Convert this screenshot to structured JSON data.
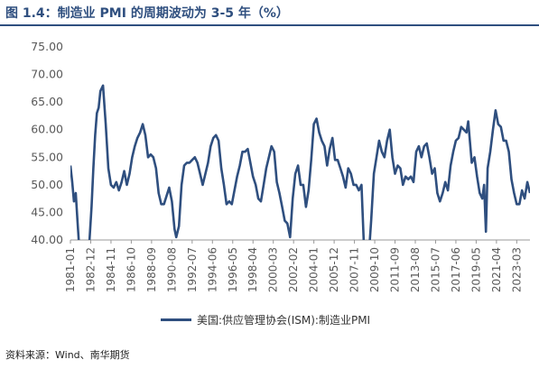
{
  "header": {
    "title": "图 1.4：制造业 PMI 的周期波动为 3-5 年（%）"
  },
  "footer": {
    "source": "资料来源：Wind、南华期货"
  },
  "colors": {
    "line": "#2f4f7f",
    "axis": "#999999",
    "text": "#595959"
  },
  "chart_data": {
    "type": "line",
    "title": "",
    "xlabel": "",
    "ylabel": "",
    "ylim": [
      40,
      75
    ],
    "yticks": [
      "40.00",
      "45.00",
      "50.00",
      "55.00",
      "60.00",
      "65.00",
      "70.00",
      "75.00"
    ],
    "xticks": [
      "1981-01",
      "1982-12",
      "1984-11",
      "1986-10",
      "1988-09",
      "1990-08",
      "1992-07",
      "1994-06",
      "1996-05",
      "1998-04",
      "2000-03",
      "2002-02",
      "2004-01",
      "2005-12",
      "2007-11",
      "2009-10",
      "2011-09",
      "2013-08",
      "2015-07",
      "2017-06",
      "2019-05",
      "2021-04",
      "2023-03"
    ],
    "xlim": [
      "1981-01",
      "2024-06"
    ],
    "grid": false,
    "legend": "bottom-center",
    "series": [
      {
        "name": "美国:供应管理协会(ISM):制造业PMI",
        "x": [
          "1981-01",
          "1981-03",
          "1981-05",
          "1981-07",
          "1981-09",
          "1981-11",
          "1982-01",
          "1982-04",
          "1982-07",
          "1982-10",
          "1983-01",
          "1983-03",
          "1983-05",
          "1983-07",
          "1983-09",
          "1983-11",
          "1984-02",
          "1984-05",
          "1984-08",
          "1984-11",
          "1985-02",
          "1985-05",
          "1985-08",
          "1985-11",
          "1986-02",
          "1986-05",
          "1986-08",
          "1986-11",
          "1987-02",
          "1987-05",
          "1987-08",
          "1987-11",
          "1988-02",
          "1988-05",
          "1988-08",
          "1988-11",
          "1989-02",
          "1989-05",
          "1989-08",
          "1989-11",
          "1990-02",
          "1990-05",
          "1990-08",
          "1990-11",
          "1991-01",
          "1991-04",
          "1991-07",
          "1991-10",
          "1992-01",
          "1992-04",
          "1992-07",
          "1992-10",
          "1993-01",
          "1993-04",
          "1993-07",
          "1993-10",
          "1994-01",
          "1994-04",
          "1994-07",
          "1994-10",
          "1995-01",
          "1995-04",
          "1995-07",
          "1995-10",
          "1996-01",
          "1996-04",
          "1996-07",
          "1996-10",
          "1997-01",
          "1997-04",
          "1997-07",
          "1997-10",
          "1998-01",
          "1998-04",
          "1998-07",
          "1998-10",
          "1999-01",
          "1999-04",
          "1999-07",
          "1999-10",
          "2000-01",
          "2000-04",
          "2000-07",
          "2000-10",
          "2001-01",
          "2001-04",
          "2001-07",
          "2001-10",
          "2002-01",
          "2002-04",
          "2002-07",
          "2002-10",
          "2003-01",
          "2003-04",
          "2003-07",
          "2003-10",
          "2004-01",
          "2004-04",
          "2004-07",
          "2004-10",
          "2005-01",
          "2005-04",
          "2005-07",
          "2005-10",
          "2006-01",
          "2006-04",
          "2006-07",
          "2006-10",
          "2007-01",
          "2007-04",
          "2007-07",
          "2007-10",
          "2008-01",
          "2008-04",
          "2008-07",
          "2008-10",
          "2008-12",
          "2009-03",
          "2009-06",
          "2009-09",
          "2009-12",
          "2010-03",
          "2010-06",
          "2010-09",
          "2010-12",
          "2011-03",
          "2011-06",
          "2011-09",
          "2011-12",
          "2012-03",
          "2012-06",
          "2012-09",
          "2012-12",
          "2013-03",
          "2013-06",
          "2013-09",
          "2013-12",
          "2014-03",
          "2014-06",
          "2014-09",
          "2014-12",
          "2015-03",
          "2015-06",
          "2015-09",
          "2015-12",
          "2016-03",
          "2016-06",
          "2016-09",
          "2016-12",
          "2017-03",
          "2017-06",
          "2017-09",
          "2017-12",
          "2018-03",
          "2018-06",
          "2018-08",
          "2018-12",
          "2019-03",
          "2019-06",
          "2019-09",
          "2019-12",
          "2020-02",
          "2020-04",
          "2020-06",
          "2020-09",
          "2020-12",
          "2021-03",
          "2021-06",
          "2021-09",
          "2021-12",
          "2022-03",
          "2022-06",
          "2022-09",
          "2022-12",
          "2023-03",
          "2023-06",
          "2023-09",
          "2023-12",
          "2024-03",
          "2024-06"
        ],
        "values": [
          53.5,
          50.5,
          47.0,
          48.5,
          43.5,
          38.5,
          36.8,
          37.5,
          38.0,
          38.3,
          46.0,
          53.0,
          59.0,
          63.0,
          64.0,
          67.0,
          68.0,
          61.0,
          53.0,
          50.0,
          49.5,
          50.5,
          49.0,
          50.5,
          52.5,
          50.0,
          52.0,
          55.0,
          57.0,
          58.5,
          59.5,
          61.0,
          59.0,
          55.0,
          55.5,
          55.0,
          53.0,
          48.5,
          46.5,
          46.5,
          48.0,
          49.5,
          47.0,
          42.0,
          40.5,
          42.5,
          50.0,
          53.5,
          54.0,
          54.0,
          54.5,
          55.0,
          54.0,
          52.0,
          50.0,
          52.0,
          54.0,
          57.0,
          58.5,
          59.0,
          58.0,
          53.0,
          50.0,
          46.5,
          47.0,
          46.5,
          49.0,
          51.5,
          53.5,
          56.0,
          56.0,
          56.5,
          54.0,
          51.5,
          50.0,
          47.5,
          47.0,
          50.0,
          53.0,
          55.0,
          57.0,
          56.0,
          50.5,
          48.5,
          46.0,
          43.5,
          43.0,
          40.5,
          47.5,
          52.0,
          53.5,
          50.0,
          50.0,
          46.0,
          49.0,
          54.5,
          61.0,
          62.0,
          59.5,
          58.0,
          57.0,
          53.5,
          56.5,
          58.5,
          54.5,
          54.5,
          53.0,
          51.5,
          49.5,
          53.0,
          52.0,
          50.0,
          50.0,
          49.0,
          50.0,
          38.0,
          33.0,
          36.5,
          43.5,
          52.0,
          55.0,
          58.0,
          56.0,
          55.0,
          58.0,
          60.0,
          55.0,
          52.0,
          53.5,
          53.0,
          50.0,
          51.5,
          51.0,
          51.5,
          50.5,
          56.0,
          57.0,
          55.0,
          57.0,
          57.5,
          55.0,
          52.0,
          53.0,
          48.5,
          47.0,
          48.5,
          50.5,
          49.0,
          53.5,
          56.0,
          58.0,
          58.5,
          60.5,
          60.0,
          59.5,
          61.5,
          54.0,
          55.0,
          51.5,
          48.5,
          47.5,
          50.0,
          41.5,
          53.0,
          56.0,
          60.0,
          63.5,
          61.0,
          60.5,
          58.0,
          58.0,
          56.0,
          51.0,
          48.5,
          46.5,
          46.5,
          49.0,
          47.5,
          50.5,
          48.5
        ]
      }
    ]
  }
}
